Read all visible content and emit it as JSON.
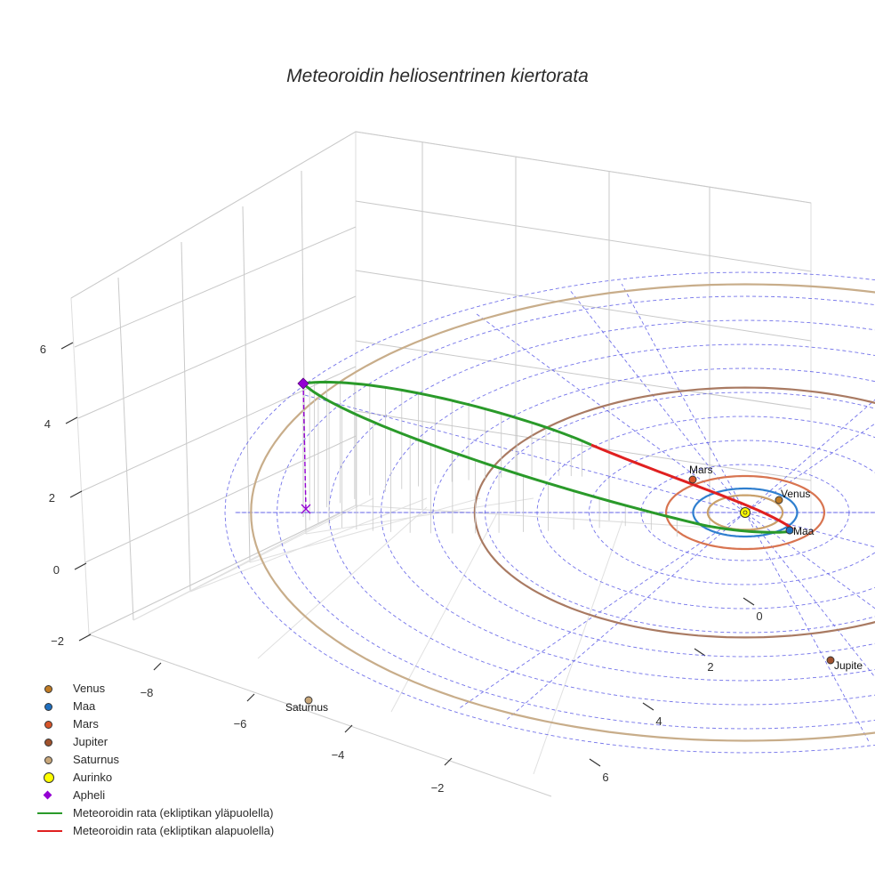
{
  "chart_data": {
    "type": "line3d",
    "title": "Meteoroidin heliosentrinen kiertorata",
    "xlabel": "",
    "ylabel": "",
    "zlabel": "",
    "x_ticks": [
      "−8",
      "−6",
      "−4",
      "−2"
    ],
    "y_ticks": [
      "0",
      "2",
      "4",
      "6"
    ],
    "z_ticks": [
      "−2",
      "0",
      "2",
      "4",
      "6"
    ],
    "xlim": [
      -10,
      0
    ],
    "ylim": [
      -2,
      8
    ],
    "zlim": [
      -2,
      7
    ],
    "grid": true,
    "legend_position": "bottom-left",
    "ecliptic_grid": {
      "ring_spacing_au": 1,
      "max_radius_au": 10,
      "spokes": 8
    },
    "sun": {
      "name": "Aurinko",
      "x": 0,
      "y": 0,
      "z": 0,
      "color": "#ffff00"
    },
    "planets": [
      {
        "name": "Venus",
        "label": "Venus",
        "radius_au": 0.72,
        "angle_deg": 54,
        "color": "#c17c25",
        "orbit_color": "#c9a06a"
      },
      {
        "name": "Maa",
        "label": "Maa",
        "radius_au": 1.0,
        "angle_deg": 88,
        "color": "#1f6fbf",
        "orbit_color": "#2f7fcf"
      },
      {
        "name": "Mars",
        "label": "Mars",
        "radius_au": 1.52,
        "angle_deg": -65,
        "color": "#d8552a",
        "orbit_color": "#d87450"
      },
      {
        "name": "Jupiter",
        "label": "Jupite",
        "radius_au": 5.2,
        "angle_deg": 111,
        "color": "#a0522d",
        "orbit_color": "#a97a62"
      },
      {
        "name": "Saturnus",
        "label": "Saturnus",
        "radius_au": 9.5,
        "angle_deg": 157,
        "color": "#c8a77a",
        "orbit_color": "#c8ad8a"
      }
    ],
    "meteoroid_orbit": {
      "semi_major_axis_au": 5.1,
      "eccentricity": 0.8,
      "inclination_deg": 22,
      "aphelion_angle_deg": 180,
      "series": [
        {
          "name": "Meteoroidin rata (ekliptikan yläpuolella)",
          "color": "#2a9a2a"
        },
        {
          "name": "Meteoroidin rata (ekliptikan alapuolella)",
          "color": "#e02020"
        }
      ]
    },
    "aphelion": {
      "name": "Apheli",
      "color": "#9400d3",
      "x": -9.2,
      "y": 0,
      "z": 3.4
    }
  },
  "legend": [
    {
      "label": "Venus",
      "kind": "dot",
      "color": "#c17c25"
    },
    {
      "label": "Maa",
      "kind": "dot",
      "color": "#1f6fbf"
    },
    {
      "label": "Mars",
      "kind": "dot",
      "color": "#d8552a"
    },
    {
      "label": "Jupiter",
      "kind": "dot",
      "color": "#a0522d"
    },
    {
      "label": "Saturnus",
      "kind": "dot",
      "color": "#c8a77a"
    },
    {
      "label": "Aurinko",
      "kind": "bigdot",
      "color": "#ffff00"
    },
    {
      "label": "Apheli",
      "kind": "diamond",
      "color": "#9400d3"
    },
    {
      "label": "Meteoroidin rata (ekliptikan yläpuolella)",
      "kind": "line",
      "color": "#2a9a2a"
    },
    {
      "label": "Meteoroidin rata (ekliptikan alapuolella)",
      "kind": "line",
      "color": "#e02020"
    }
  ]
}
